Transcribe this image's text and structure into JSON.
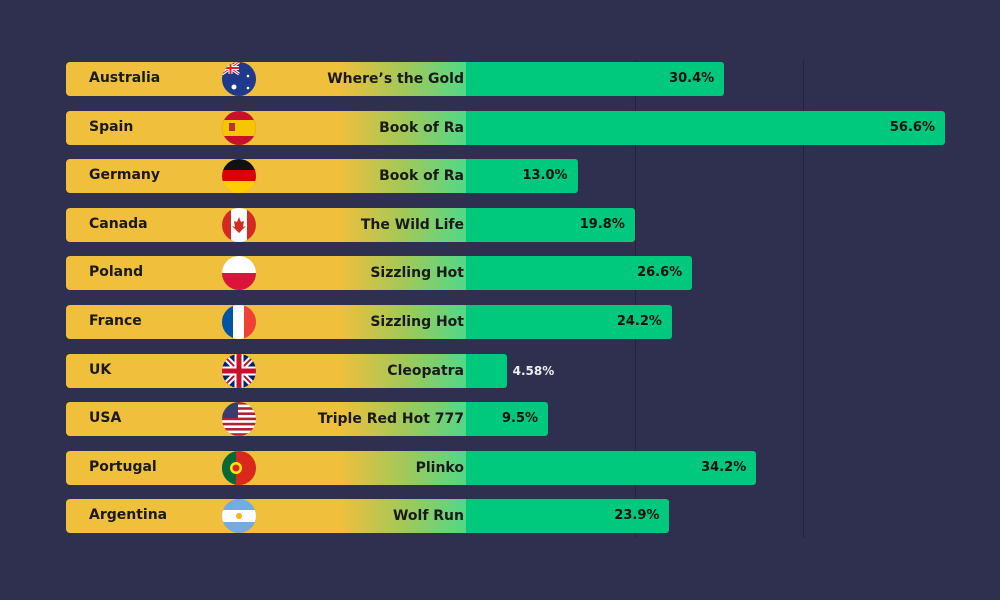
{
  "chart_data": {
    "type": "bar",
    "orientation": "horizontal",
    "categories": [
      "Australia",
      "Spain",
      "Germany",
      "Canada",
      "Poland",
      "France",
      "UK",
      "USA",
      "Portugal",
      "Argentina"
    ],
    "games": [
      "Where’s the Gold",
      "Book of Ra",
      "Book of Ra",
      "The Wild Life",
      "Sizzling Hot",
      "Sizzling Hot",
      "Cleopatra",
      "Triple Red Hot 777",
      "Plinko",
      "Wolf Run"
    ],
    "flags": [
      "australia-flag",
      "spain-flag",
      "germany-flag",
      "canada-flag",
      "poland-flag",
      "france-flag",
      "uk-flag",
      "usa-flag",
      "portugal-flag",
      "argentina-flag"
    ],
    "values": [
      30.4,
      56.6,
      13.0,
      19.8,
      26.6,
      24.2,
      4.58,
      9.5,
      34.2,
      23.9
    ],
    "labels": [
      "30.4%",
      "56.6%",
      "13.0%",
      "19.8%",
      "26.6%",
      "24.2%",
      "4.58%",
      "9.5%",
      "34.2%",
      "23.9%"
    ],
    "xlim": [
      0,
      60
    ],
    "grid": true,
    "colors": {
      "background": "#2f3050",
      "label_bar": "#f0bf3c",
      "value_bar": "#00c97d"
    }
  }
}
